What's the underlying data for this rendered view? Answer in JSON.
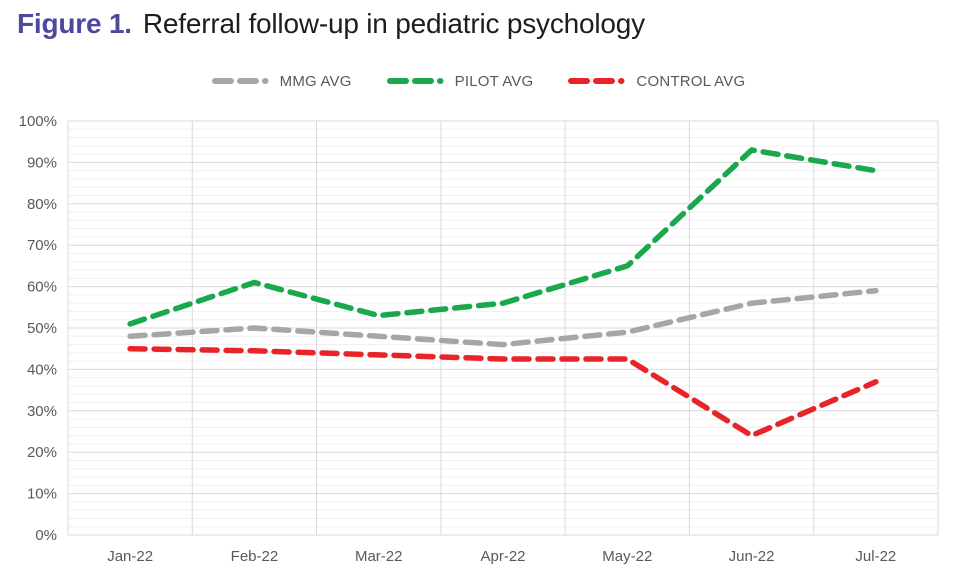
{
  "title": {
    "prefix": "Figure 1.",
    "text": "Referral follow-up in pediatric psychology"
  },
  "colors": {
    "title_accent": "#4c4a9e",
    "title_text": "#1d1d1d",
    "axis_text": "#595959",
    "grid_major": "#d9d9d9",
    "grid_minor": "#f0f0f0",
    "plot_border": "#d9d9d9",
    "background": "#ffffff"
  },
  "chart_data": {
    "type": "line",
    "title": "Referral follow-up in pediatric psychology",
    "categories": [
      "Jan-22",
      "Feb-22",
      "Mar-22",
      "Apr-22",
      "May-22",
      "Jun-22",
      "Jul-22"
    ],
    "series": [
      {
        "name": "MMG AVG",
        "color": "#a6a6a6",
        "values": [
          48,
          50,
          48,
          46,
          49,
          56,
          59
        ]
      },
      {
        "name": "PILOT AVG",
        "color": "#19a84b",
        "values": [
          51,
          61,
          53,
          56,
          65,
          93,
          88
        ]
      },
      {
        "name": "CONTROL AVG",
        "color": "#e92428",
        "values": [
          45,
          44.5,
          43.5,
          42.5,
          42.5,
          24,
          37
        ]
      }
    ],
    "ylim": [
      0,
      100
    ],
    "y_major_step": 10,
    "y_minor_step": 2,
    "y_tick_suffix": "%",
    "y_tick_labels": [
      "0%",
      "10%",
      "20%",
      "30%",
      "40%",
      "50%",
      "60%",
      "70%",
      "80%",
      "90%",
      "100%"
    ],
    "xlabel": "",
    "ylabel": "",
    "grid": true,
    "legend_position": "top",
    "line_style": "dashed"
  }
}
